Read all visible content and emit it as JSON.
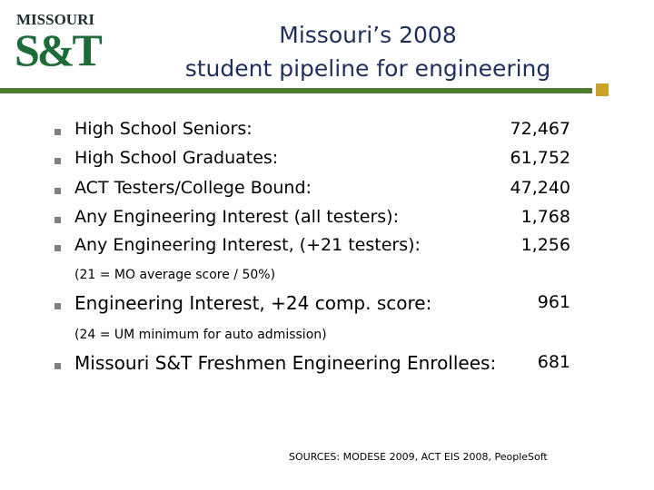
{
  "logo": {
    "top": "MISSOURI",
    "main": "S&T"
  },
  "header": {
    "title_line1": "Missouri’s 2008",
    "title_line2": "student pipeline for engineering"
  },
  "items": [
    {
      "label": "High School Seniors:",
      "value": "72,467"
    },
    {
      "label": "High School Graduates:",
      "value": "61,752"
    },
    {
      "label": "ACT Testers/College Bound:",
      "value": "47,240"
    },
    {
      "label": "Any Engineering Interest (all testers):",
      "value": "1,768"
    },
    {
      "label": "Any Engineering Interest, (+21 testers):",
      "value": "1,256"
    },
    {
      "label": "Engineering Interest, +24 comp. score:",
      "value": "961"
    },
    {
      "label": "Missouri S&T Freshmen Engineering Enrollees:",
      "value": "681"
    }
  ],
  "notes": [
    "(21 = MO average score / 50%)",
    "(24 = UM minimum for auto admission)"
  ],
  "sources": "SOURCES: MODESE 2009, ACT EIS 2008, PeopleSoft"
}
